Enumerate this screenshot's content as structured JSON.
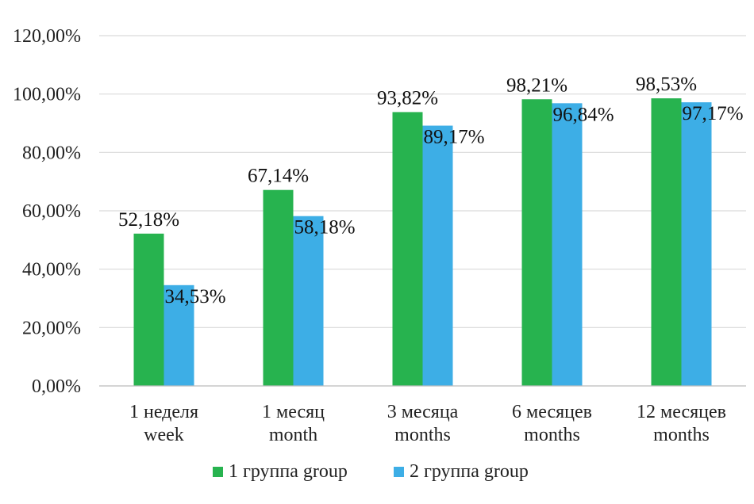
{
  "chart_data": {
    "type": "bar",
    "categories": [
      [
        "1 неделя",
        "week"
      ],
      [
        "1 месяц",
        "month"
      ],
      [
        "3 месяца",
        "months"
      ],
      [
        "6 месяцев",
        "months"
      ],
      [
        "12 месяцев",
        "months"
      ]
    ],
    "series": [
      {
        "name": "1 группа group",
        "color": "#27b34f",
        "values": [
          52.18,
          67.14,
          93.82,
          98.21,
          98.53
        ],
        "labels": [
          "52,18%",
          "67,14%",
          "93,82%",
          "98,21%",
          "98,53%"
        ]
      },
      {
        "name": "2 группа group",
        "color": "#3daee6",
        "values": [
          34.53,
          58.18,
          89.17,
          96.84,
          97.17
        ],
        "labels": [
          "34,53%",
          "58,18%",
          "89,17%",
          "96,84%",
          "97,17%"
        ]
      }
    ],
    "y_ticks": [
      0,
      20,
      40,
      60,
      80,
      100,
      120
    ],
    "y_tick_labels": [
      "0,00%",
      "20,00%",
      "40,00%",
      "60,00%",
      "80,00%",
      "100,00%",
      "120,00%"
    ],
    "ylim": [
      0,
      120
    ],
    "grid": true,
    "legend_position": "bottom-center"
  }
}
